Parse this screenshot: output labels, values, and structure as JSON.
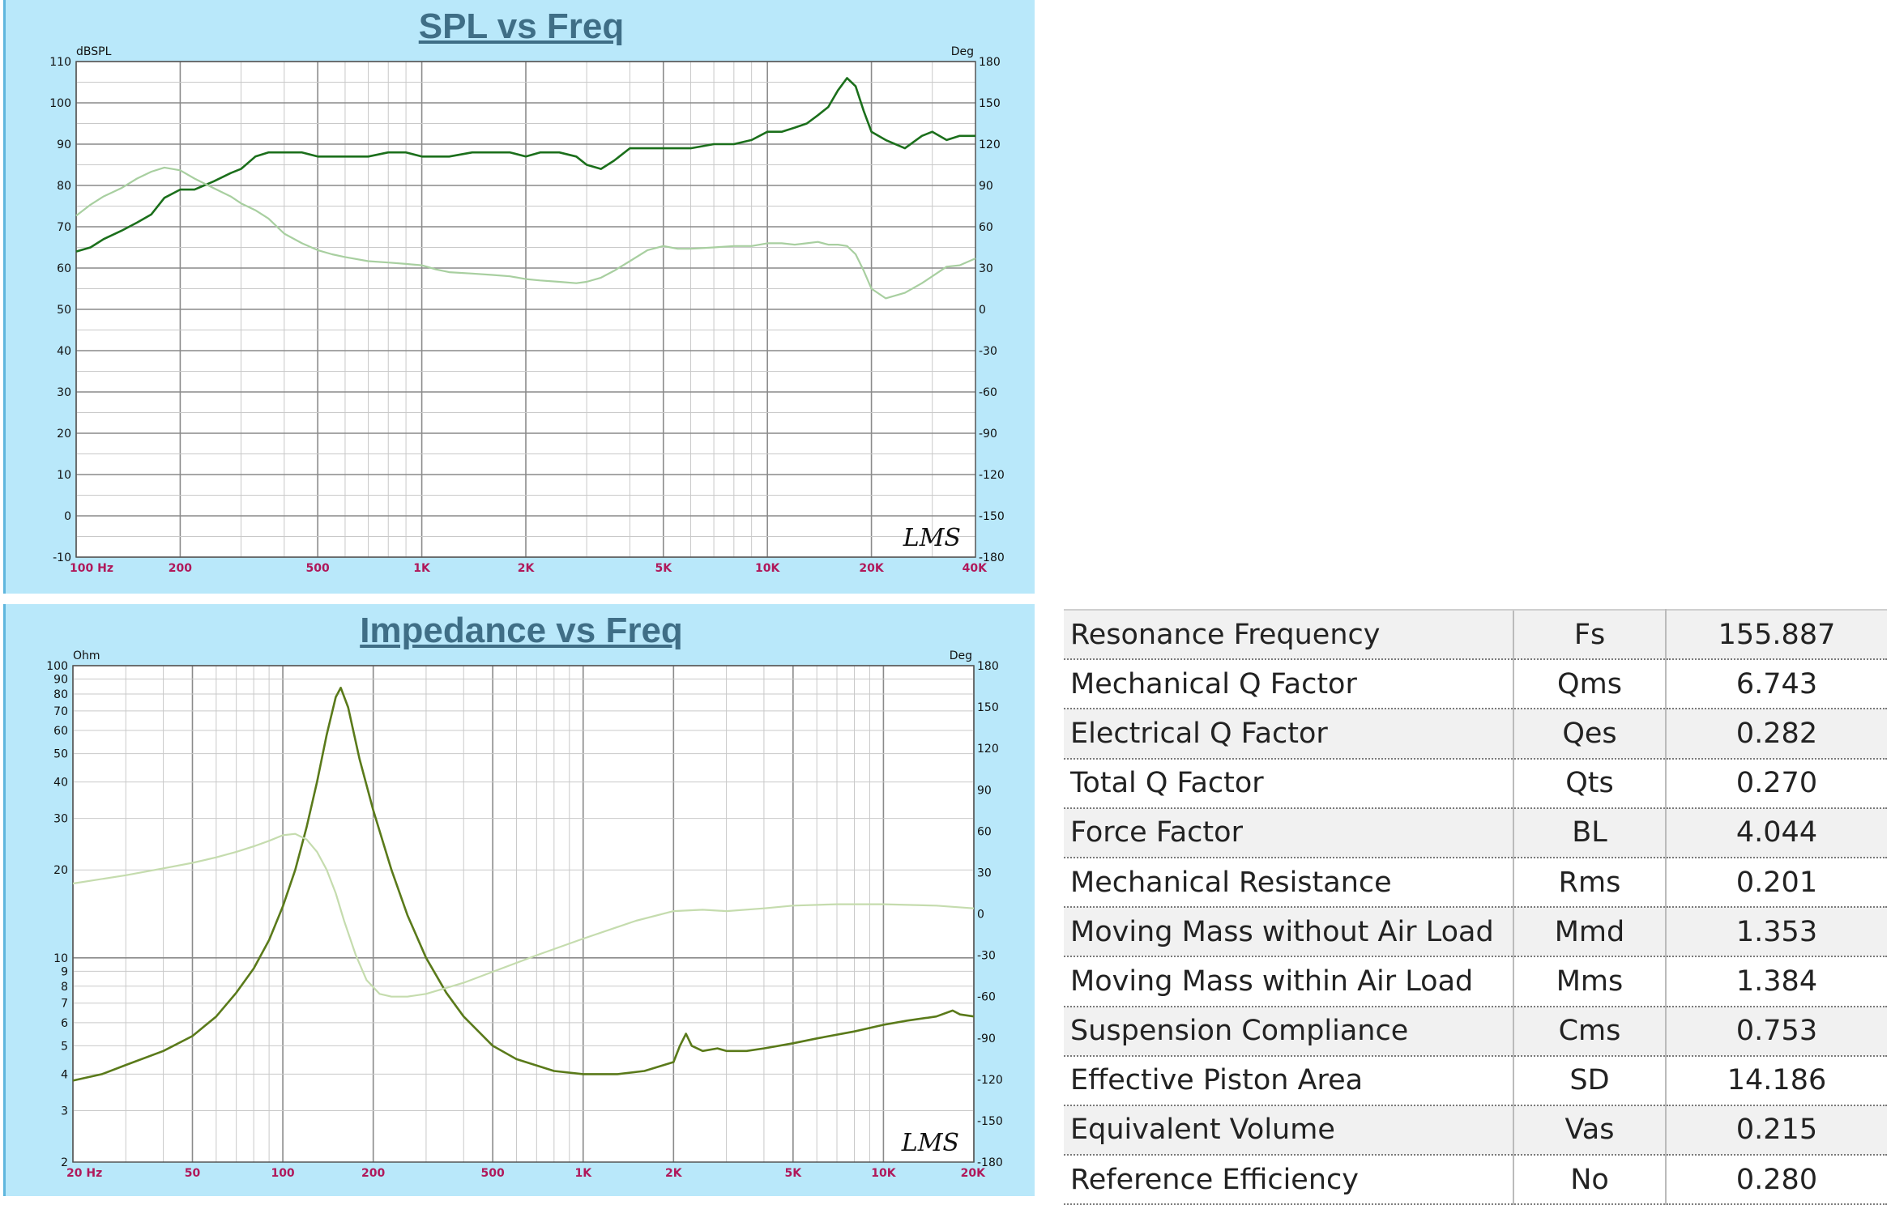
{
  "chart_data": [
    {
      "type": "line",
      "title": "SPL vs Freq",
      "x_scale": "log",
      "xlim": [
        100,
        40000
      ],
      "x_tick_labels": [
        "100 Hz",
        "200",
        "500",
        "1K",
        "2K",
        "5K",
        "10K",
        "20K",
        "40K"
      ],
      "y_left": {
        "label": "dBSPL",
        "ylim": [
          -10,
          110
        ],
        "ticks": [
          "-10",
          "0",
          "10",
          "20",
          "30",
          "40",
          "50",
          "60",
          "70",
          "80",
          "90",
          "100",
          "110"
        ]
      },
      "y_right": {
        "label": "Deg",
        "ylim": [
          -180,
          180
        ],
        "ticks": [
          "-180",
          "-150",
          "-120",
          "-90",
          "-60",
          "-30",
          "0",
          "30",
          "60",
          "90",
          "120",
          "150",
          "180"
        ]
      },
      "grid": true,
      "watermark": "LMS",
      "series": [
        {
          "axis": "left",
          "color": "#1b6f1b",
          "x": [
            100,
            110,
            120,
            135,
            150,
            165,
            180,
            200,
            220,
            250,
            280,
            300,
            330,
            360,
            400,
            450,
            500,
            550,
            600,
            700,
            800,
            900,
            1000,
            1100,
            1200,
            1400,
            1600,
            1800,
            2000,
            2200,
            2500,
            2800,
            3000,
            3300,
            3600,
            4000,
            4500,
            5000,
            5500,
            6000,
            7000,
            8000,
            9000,
            10000,
            11000,
            12000,
            13000,
            14000,
            15000,
            16000,
            17000,
            18000,
            19000,
            20000,
            22000,
            25000,
            28000,
            30000,
            33000,
            36000,
            40000
          ],
          "y": [
            64,
            65,
            67,
            69,
            71,
            73,
            77,
            79,
            79,
            81,
            83,
            84,
            87,
            88,
            88,
            88,
            87,
            87,
            87,
            87,
            88,
            88,
            87,
            87,
            87,
            88,
            88,
            88,
            87,
            88,
            88,
            87,
            85,
            84,
            86,
            89,
            89,
            89,
            89,
            89,
            90,
            90,
            91,
            93,
            93,
            94,
            95,
            97,
            99,
            103,
            106,
            104,
            98,
            93,
            91,
            89,
            92,
            93,
            91,
            92,
            92
          ]
        },
        {
          "axis": "right",
          "color": "#a8cfa0",
          "x": [
            100,
            110,
            120,
            135,
            150,
            165,
            180,
            200,
            220,
            250,
            280,
            300,
            330,
            360,
            400,
            450,
            500,
            550,
            600,
            700,
            800,
            900,
            1000,
            1100,
            1200,
            1400,
            1600,
            1800,
            2000,
            2200,
            2500,
            2800,
            3000,
            3300,
            3600,
            4000,
            4500,
            5000,
            5500,
            6000,
            7000,
            8000,
            9000,
            10000,
            11000,
            12000,
            13000,
            14000,
            15000,
            16000,
            17000,
            18000,
            19000,
            20000,
            22000,
            25000,
            28000,
            30000,
            33000,
            36000,
            40000
          ],
          "y": [
            68,
            76,
            82,
            88,
            95,
            100,
            103,
            101,
            95,
            88,
            82,
            77,
            72,
            66,
            55,
            48,
            43,
            40,
            38,
            35,
            34,
            33,
            32,
            29,
            27,
            26,
            25,
            24,
            22,
            21,
            20,
            19,
            20,
            23,
            28,
            35,
            43,
            46,
            44,
            44,
            45,
            46,
            46,
            48,
            48,
            47,
            48,
            49,
            47,
            47,
            46,
            40,
            28,
            15,
            8,
            12,
            19,
            24,
            31,
            32,
            37
          ]
        }
      ]
    },
    {
      "type": "line",
      "title": "Impedance vs Freq",
      "x_scale": "log",
      "xlim": [
        20,
        20000
      ],
      "x_tick_labels": [
        "20 Hz",
        "50",
        "100",
        "200",
        "500",
        "1K",
        "2K",
        "5K",
        "10K",
        "20K"
      ],
      "y_left": {
        "label": "Ohm",
        "scale": "log",
        "ylim": [
          2,
          100
        ],
        "ticks": [
          "2",
          "3",
          "4",
          "5",
          "6",
          "7",
          "8",
          "9",
          "10",
          "20",
          "30",
          "40",
          "50",
          "60",
          "70",
          "80",
          "90",
          "100"
        ]
      },
      "y_right": {
        "label": "Deg",
        "ylim": [
          -180,
          180
        ],
        "ticks": [
          "-180",
          "-150",
          "-120",
          "-90",
          "-60",
          "-30",
          "0",
          "30",
          "60",
          "90",
          "120",
          "150",
          "180"
        ]
      },
      "grid": true,
      "watermark": "LMS",
      "series": [
        {
          "axis": "left",
          "color": "#5a7a1a",
          "x": [
            20,
            25,
            30,
            40,
            50,
            60,
            70,
            80,
            90,
            100,
            110,
            120,
            130,
            140,
            150,
            155.9,
            165,
            180,
            200,
            230,
            260,
            300,
            350,
            400,
            500,
            600,
            800,
            1000,
            1300,
            1600,
            2000,
            2100,
            2200,
            2300,
            2500,
            2800,
            3000,
            3500,
            4000,
            5000,
            6000,
            8000,
            10000,
            12000,
            15000,
            17000,
            18000,
            20000
          ],
          "y": [
            3.8,
            4.0,
            4.3,
            4.8,
            5.4,
            6.3,
            7.6,
            9.2,
            11.5,
            15,
            20,
            28,
            40,
            58,
            78,
            84,
            72,
            48,
            32,
            20,
            14,
            10,
            7.6,
            6.3,
            5.0,
            4.5,
            4.1,
            4.0,
            4.0,
            4.1,
            4.4,
            5.0,
            5.5,
            5.0,
            4.8,
            4.9,
            4.8,
            4.8,
            4.9,
            5.1,
            5.3,
            5.6,
            5.9,
            6.1,
            6.3,
            6.6,
            6.4,
            6.3
          ]
        },
        {
          "axis": "right",
          "color": "#c5dcae",
          "x": [
            20,
            30,
            40,
            50,
            60,
            70,
            80,
            90,
            100,
            110,
            120,
            130,
            140,
            150,
            160,
            175,
            190,
            210,
            230,
            260,
            300,
            400,
            500,
            700,
            1000,
            1500,
            2000,
            2500,
            3000,
            4000,
            5000,
            7000,
            10000,
            15000,
            20000
          ],
          "y": [
            22,
            28,
            33,
            37,
            41,
            45,
            49,
            53,
            57,
            58,
            54,
            45,
            32,
            15,
            -5,
            -30,
            -48,
            -58,
            -60,
            -60,
            -58,
            -50,
            -42,
            -30,
            -18,
            -5,
            2,
            3,
            2,
            4,
            6,
            7,
            7,
            6,
            4
          ]
        }
      ]
    }
  ],
  "param_table": {
    "rows": [
      {
        "name": "Resonance Frequency",
        "symbol": "Fs",
        "value": "155.887"
      },
      {
        "name": "Mechanical Q Factor",
        "symbol": "Qms",
        "value": "6.743"
      },
      {
        "name": "Electrical Q Factor",
        "symbol": "Qes",
        "value": "0.282"
      },
      {
        "name": "Total Q Factor",
        "symbol": "Qts",
        "value": "0.270"
      },
      {
        "name": "Force Factor",
        "symbol": "BL",
        "value": "4.044"
      },
      {
        "name": "Mechanical Resistance",
        "symbol": "Rms",
        "value": "0.201"
      },
      {
        "name": "Moving Mass without Air Load",
        "symbol": "Mmd",
        "value": "1.353"
      },
      {
        "name": "Moving Mass within Air Load",
        "symbol": "Mms",
        "value": "1.384"
      },
      {
        "name": "Suspension Compliance",
        "symbol": "Cms",
        "value": "0.753"
      },
      {
        "name": "Effective Piston Area",
        "symbol": "SD",
        "value": "14.186"
      },
      {
        "name": "Equivalent Volume",
        "symbol": "Vas",
        "value": "0.215"
      },
      {
        "name": "Reference Efficiency",
        "symbol": "No",
        "value": "0.280"
      }
    ]
  }
}
